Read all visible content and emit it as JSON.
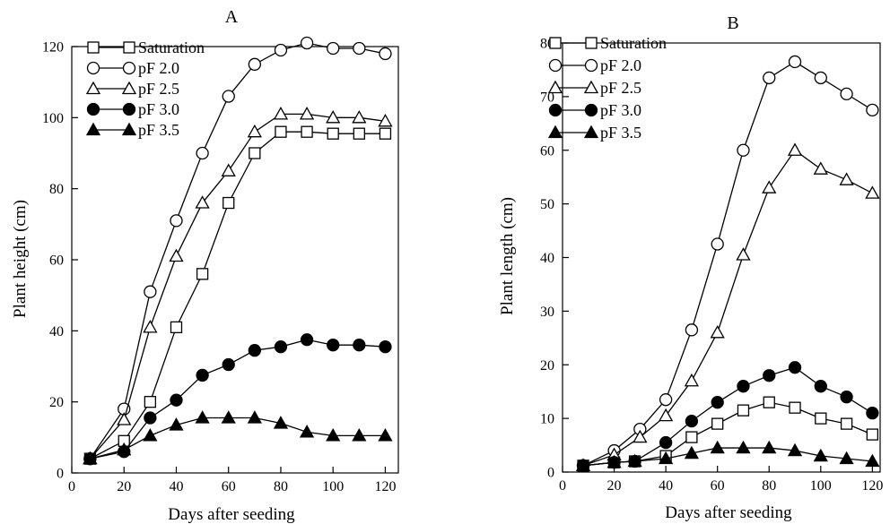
{
  "chart_data": [
    {
      "type": "line",
      "title": "A",
      "xlabel": "Days after seeding",
      "ylabel": "Plant height (cm)",
      "xlim": [
        0,
        125
      ],
      "ylim": [
        0,
        120
      ],
      "xticks": [
        0,
        20,
        40,
        60,
        80,
        100,
        120
      ],
      "yticks": [
        0,
        20,
        40,
        60,
        80,
        100,
        120
      ],
      "grid": false,
      "legend_position": "top-left",
      "series": [
        {
          "name": "Saturation",
          "marker": "square-open",
          "x": [
            7,
            20,
            30,
            40,
            50,
            60,
            70,
            80,
            90,
            100,
            110,
            120
          ],
          "y": [
            4,
            9,
            20,
            41,
            56,
            76,
            90,
            96,
            96,
            95.5,
            95.5,
            95.5
          ]
        },
        {
          "name": "pF 2.0",
          "marker": "circle-open",
          "x": [
            7,
            20,
            30,
            40,
            50,
            60,
            70,
            80,
            90,
            100,
            110,
            120
          ],
          "y": [
            4,
            18,
            51,
            71,
            90,
            106,
            115,
            119,
            121,
            119.5,
            119.5,
            118
          ]
        },
        {
          "name": "pF 2.5",
          "marker": "triangle-open",
          "x": [
            7,
            20,
            30,
            40,
            50,
            60,
            70,
            80,
            90,
            100,
            110,
            120
          ],
          "y": [
            4,
            15,
            41,
            61,
            76,
            85,
            96,
            101,
            101,
            100,
            100,
            99
          ]
        },
        {
          "name": "pF 3.0",
          "marker": "circle-filled",
          "x": [
            7,
            20,
            30,
            40,
            50,
            60,
            70,
            80,
            90,
            100,
            110,
            120
          ],
          "y": [
            4,
            6,
            15.5,
            20.5,
            27.5,
            30.5,
            34.5,
            35.5,
            37.5,
            36,
            36,
            35.5
          ]
        },
        {
          "name": "pF 3.5",
          "marker": "triangle-filled",
          "x": [
            7,
            20,
            30,
            40,
            50,
            60,
            70,
            80,
            90,
            100,
            110,
            120
          ],
          "y": [
            4,
            6.5,
            10.5,
            13.5,
            15.5,
            15.5,
            15.5,
            14,
            11.5,
            10.5,
            10.5,
            10.5
          ]
        }
      ]
    },
    {
      "type": "line",
      "title": "B",
      "xlabel": "Days after seeding",
      "ylabel": "Plant length (cm)",
      "xlim": [
        0,
        123
      ],
      "ylim": [
        0,
        80
      ],
      "xticks": [
        0,
        20,
        40,
        60,
        80,
        100,
        120
      ],
      "yticks": [
        0,
        10,
        20,
        30,
        40,
        50,
        60,
        70,
        80
      ],
      "grid": false,
      "legend_position": "top-left",
      "series": [
        {
          "name": "Saturation",
          "marker": "square-open",
          "x": [
            8,
            20,
            28,
            40,
            50,
            60,
            70,
            80,
            90,
            100,
            110,
            120
          ],
          "y": [
            1.2,
            1.8,
            2,
            3,
            6.5,
            9,
            11.5,
            13,
            12,
            10,
            9,
            7
          ]
        },
        {
          "name": "pF 2.0",
          "marker": "circle-open",
          "x": [
            8,
            20,
            30,
            40,
            50,
            60,
            70,
            80,
            90,
            100,
            110,
            120
          ],
          "y": [
            1.2,
            4,
            8,
            13.5,
            26.5,
            42.5,
            60,
            73.5,
            76.5,
            73.5,
            70.5,
            67.5
          ]
        },
        {
          "name": "pF 2.5",
          "marker": "triangle-open",
          "x": [
            8,
            20,
            30,
            40,
            50,
            60,
            70,
            80,
            90,
            100,
            110,
            120
          ],
          "y": [
            1.2,
            3.2,
            6.5,
            10.5,
            17,
            26,
            40.5,
            53,
            60,
            56.5,
            54.5,
            52
          ]
        },
        {
          "name": "pF 3.0",
          "marker": "circle-filled",
          "x": [
            8,
            20,
            28,
            40,
            50,
            60,
            70,
            80,
            90,
            100,
            110,
            120
          ],
          "y": [
            1.2,
            1.8,
            2,
            5.5,
            9.5,
            13,
            16,
            18,
            19.5,
            16,
            14,
            11
          ]
        },
        {
          "name": "pF 3.5",
          "marker": "triangle-filled",
          "x": [
            8,
            20,
            28,
            40,
            50,
            60,
            70,
            80,
            90,
            100,
            110,
            120
          ],
          "y": [
            1.2,
            1.8,
            2,
            2.5,
            3.5,
            4.5,
            4.5,
            4.5,
            4,
            3,
            2.5,
            2
          ]
        }
      ]
    }
  ]
}
